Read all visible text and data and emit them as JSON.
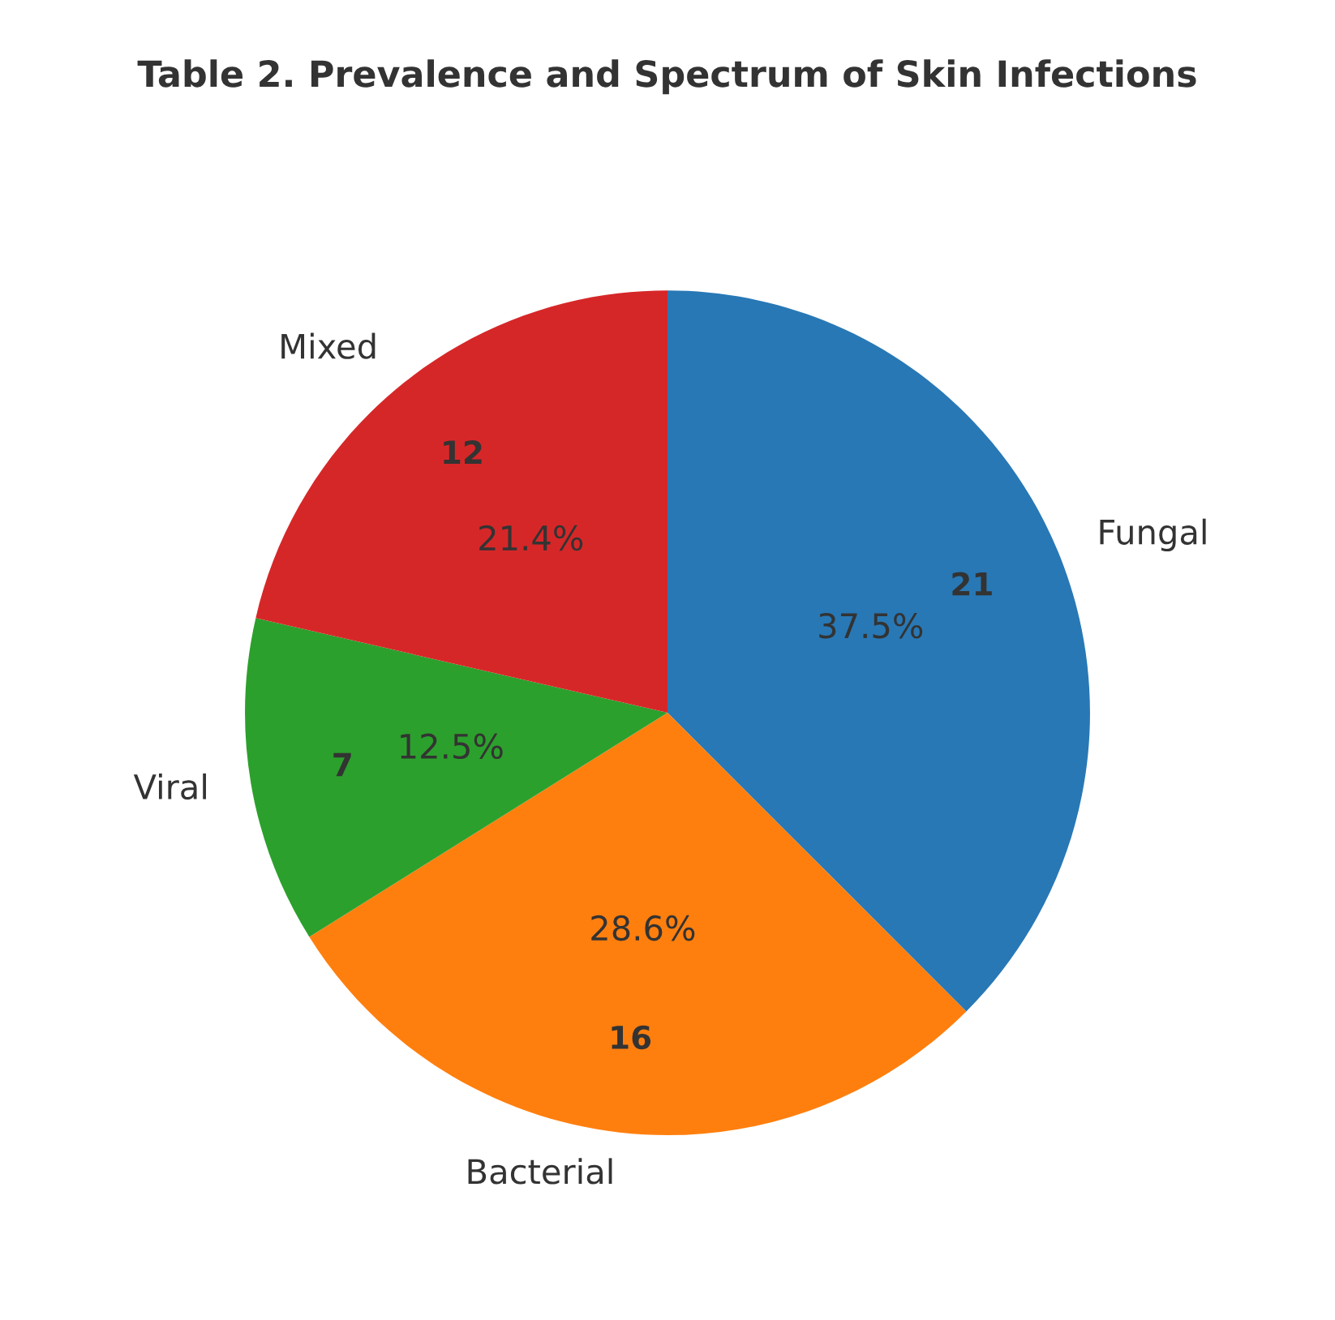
{
  "chart_data": {
    "type": "pie",
    "title": "Table 2. Prevalence and Spectrum of Skin Infections",
    "categories": [
      "Fungal",
      "Bacterial",
      "Viral",
      "Mixed"
    ],
    "values": [
      37.5,
      28.6,
      12.5,
      21.4
    ],
    "colors": [
      "#2878b5",
      "#ff7f0e",
      "#2ca02c",
      "#d62728"
    ],
    "value_labels": [
      "37.5%",
      "28.6%",
      "12.5%",
      "21.4%"
    ],
    "annotations": [
      {
        "text": "21",
        "x": "Fungal"
      },
      {
        "text": "16",
        "x": "Bacterial"
      },
      {
        "text": "7",
        "x": "Viral"
      },
      {
        "text": "12",
        "x": "Mixed"
      }
    ]
  }
}
